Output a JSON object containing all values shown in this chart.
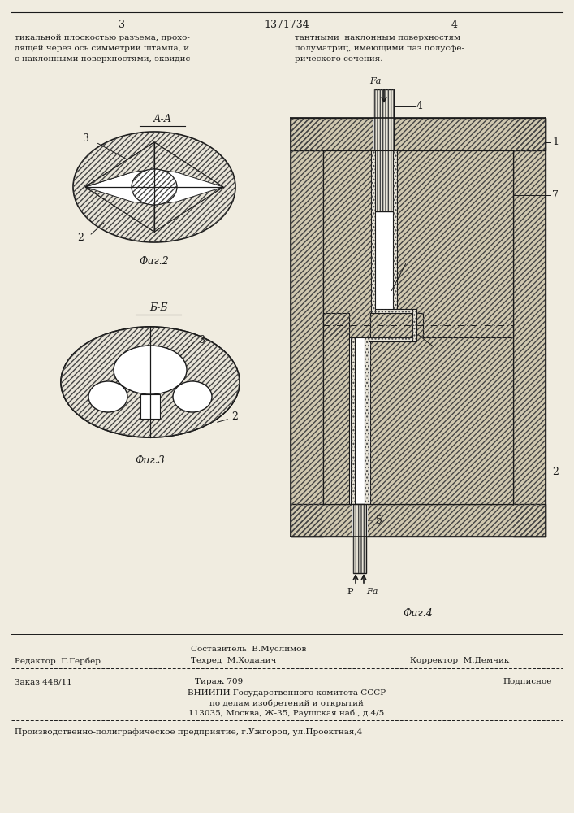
{
  "page_width": 7.07,
  "page_height": 10.0,
  "bg_color": "#f0ece0",
  "page_num_left": "3",
  "page_num_center": "1371734",
  "page_num_right": "4",
  "text_left_col": "тикальной плоскостью разъема, прохо-\nдящей через ось симметрии штампа, и\nс наклонными поверхностями, эквидис-",
  "text_right_col": "тантными  наклонным поверхностям\nполуматриц, имеющими паз полусфе-\nрического сечения.",
  "fig2_label": "А-А",
  "fig2_caption": "Фиг.2",
  "fig3_label": "Б-Б",
  "fig3_caption": "Фиг.3",
  "fig4_caption": "Фиг.4",
  "editor_line": "Редактор  Г.Гербер",
  "compiler_line": "Составитель  В.Муслимов",
  "techred_line": "Техред  М.Ходанич",
  "corrector_line": "Корректор  М.Демчик",
  "order_line": "Заказ 448/11",
  "tirazh_line": "Тираж 709",
  "podpisnoe_line": "Подписное",
  "vniip1": "ВНИИПИ Государственного комитета СССР",
  "vniip2": "по делам изобретений и открытий",
  "vniip3": "113035, Москва, Ж-35, Раушская наб., д.4/5",
  "footer_line": "Производственно-полиграфическое предприятие, г.Ужгород, ул.Проектная,4",
  "hatch_color": "#444444",
  "line_color": "#1a1a1a",
  "fill_light": "#e8e4d8",
  "fill_hatch": "#d0c8b0"
}
